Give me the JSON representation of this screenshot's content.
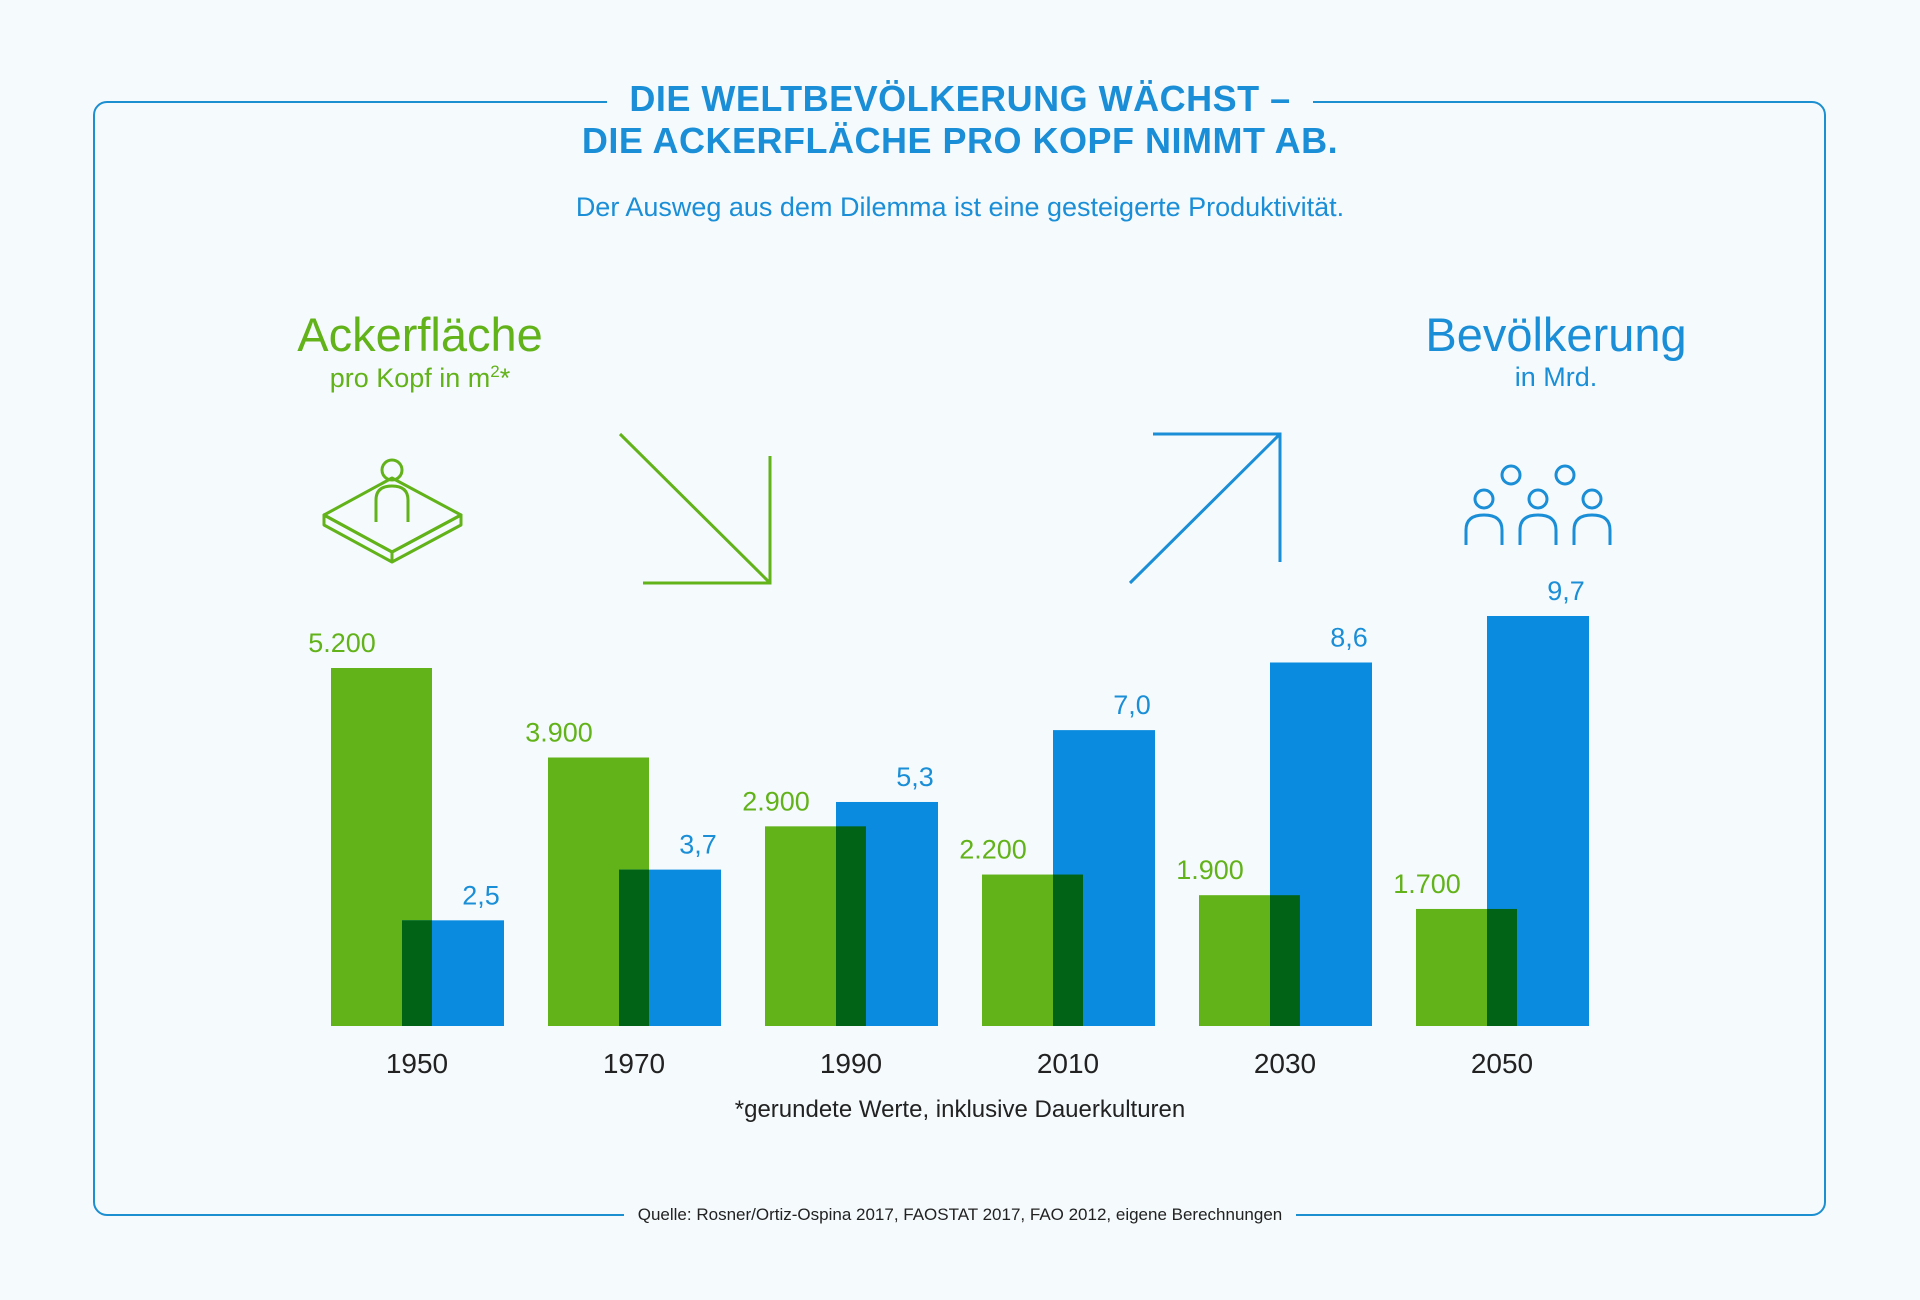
{
  "title_line1": "DIE WELTBEVÖLKERUNG WÄCHST –",
  "title_line2": "DIE ACKERFLÄCHE PRO KOPF NIMMT AB.",
  "subtitle": "Der Ausweg aus dem Dilemma ist eine gesteigerte Produktivität.",
  "acker": {
    "heading": "Ackerfläche",
    "sub_prefix": "pro Kopf in m",
    "sub_sup": "2",
    "sub_suffix": "*",
    "icon": "farmland-person-icon"
  },
  "bevoelkerung": {
    "heading": "Bevölkerung",
    "sub": "in Mrd.",
    "icon": "people-group-icon"
  },
  "colors": {
    "green": "#62b219",
    "blue": "#0a8bdf",
    "overlap": "#006316",
    "accent_text": "#1a8ed6"
  },
  "chart_data": {
    "type": "bar",
    "categories": [
      "1950",
      "1970",
      "1990",
      "2010",
      "2030",
      "2050"
    ],
    "series": [
      {
        "name": "Ackerfläche pro Kopf in m²",
        "values": [
          5200,
          3900,
          2900,
          2200,
          1900,
          1700
        ],
        "labels": [
          "5.200",
          "3.900",
          "2.900",
          "2.200",
          "1.900",
          "1.700"
        ]
      },
      {
        "name": "Bevölkerung in Mrd.",
        "values": [
          2.5,
          3.7,
          5.3,
          7.0,
          8.6,
          9.7
        ],
        "labels": [
          "2,5",
          "3,7",
          "5,3",
          "7,0",
          "8,6",
          "9,7"
        ]
      }
    ],
    "overlap": "partial",
    "arrows": [
      "down (Ackerfläche)",
      "up (Bevölkerung)"
    ]
  },
  "footnote": "*gerundete Werte, inklusive Dauerkulturen",
  "source": "Quelle: Rosner/Ortiz-Ospina 2017, FAOSTAT 2017, FAO 2012, eigene Berechnungen"
}
